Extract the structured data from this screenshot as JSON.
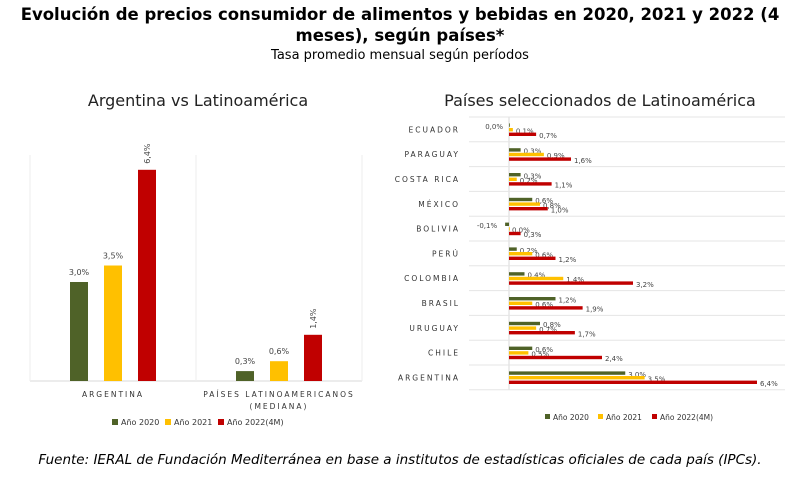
{
  "header": {
    "title_line1": "Evolución de precios consumidor de alimentos y bebidas en 2020, 2021 y 2022 (4",
    "title_line2": "meses), según países*",
    "subtitle": "Tasa promedio mensual según períodos"
  },
  "footer": "Fuente: IERAL de Fundación Mediterránea en base a institutos de estadísticas oficiales de cada país (IPCs).",
  "colors": {
    "y2020": "#4f6228",
    "y2021": "#ffc000",
    "y2022": "#c00000"
  },
  "chart_data": [
    {
      "type": "bar",
      "title": "Argentina vs Latinoamérica",
      "categories": [
        "ARGENTINA",
        "PAÍSES LATINOAMERICANOS (MEDIANA)"
      ],
      "category_lines": [
        [
          "ARGENTINA"
        ],
        [
          "PAÍSES LATINOAMERICANOS",
          "(MEDIANA)"
        ]
      ],
      "series": [
        {
          "name": "Año 2020",
          "values": [
            3.0,
            0.3
          ],
          "labels": [
            "3,0%",
            "0,3%"
          ]
        },
        {
          "name": "Año 2021",
          "values": [
            3.5,
            0.6
          ],
          "labels": [
            "3,5%",
            "0,6%"
          ]
        },
        {
          "name": "Año 2022(4M)",
          "values": [
            6.4,
            1.4
          ],
          "labels": [
            "6,4%",
            "1,4%"
          ]
        }
      ],
      "ylim": [
        0,
        7
      ],
      "legend": "bottom",
      "grid": false
    },
    {
      "type": "bar",
      "orientation": "horizontal",
      "title": "Países seleccionados de Latinoamérica",
      "categories": [
        "ECUADOR",
        "PARAGUAY",
        "COSTA RICA",
        "MÉXICO",
        "BOLIVIA",
        "PERÚ",
        "COLOMBIA",
        "BRASIL",
        "URUGUAY",
        "CHILE",
        "ARGENTINA"
      ],
      "series": [
        {
          "name": "Año 2020",
          "values": [
            0.0,
            0.3,
            0.3,
            0.6,
            -0.1,
            0.2,
            0.4,
            1.2,
            0.8,
            0.6,
            3.0
          ],
          "labels": [
            "0,0%",
            "0,3%",
            "0,3%",
            "0,6%",
            "-0,1%",
            "0,2%",
            "0,4%",
            "1,2%",
            "0,8%",
            "0,6%",
            "3,0%"
          ]
        },
        {
          "name": "Año 2021",
          "values": [
            0.1,
            0.9,
            0.2,
            0.8,
            0.0,
            0.6,
            1.4,
            0.6,
            0.7,
            0.5,
            3.5
          ],
          "labels": [
            "0,1%",
            "0,9%",
            "0,2%",
            "0,8%",
            "0,0%",
            "0,6%",
            "1,4%",
            "0,6%",
            "0,7%",
            "0,5%",
            "3,5%"
          ]
        },
        {
          "name": "Año 2022(4M)",
          "values": [
            0.7,
            1.6,
            1.1,
            1.0,
            0.3,
            1.2,
            3.2,
            1.9,
            1.7,
            2.4,
            6.4
          ],
          "labels": [
            "0,7%",
            "1,6%",
            "1,1%",
            "1,0%",
            "0,3%",
            "1,2%",
            "3,2%",
            "1,9%",
            "1,7%",
            "2,4%",
            "6,4%"
          ]
        }
      ],
      "xlim": [
        -0.2,
        6.6
      ],
      "legend": "bottom",
      "grid": true
    }
  ]
}
